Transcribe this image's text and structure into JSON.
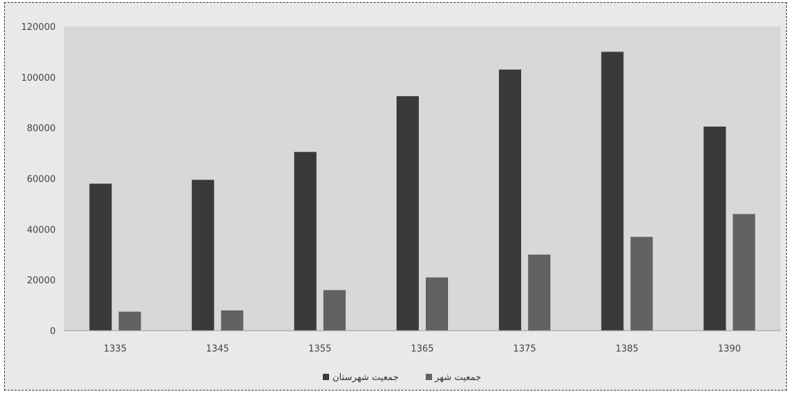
{
  "chart_data": {
    "type": "bar",
    "categories": [
      "1335",
      "1345",
      "1355",
      "1365",
      "1375",
      "1385",
      "1390"
    ],
    "series": [
      {
        "name": "جمعیت شهرستان",
        "values": [
          58000,
          59500,
          70500,
          92500,
          103000,
          110000,
          80500
        ],
        "color": "#3a3a3a"
      },
      {
        "name": "جمعیت شهر",
        "values": [
          7500,
          8000,
          16000,
          21000,
          30000,
          37000,
          46000
        ],
        "color": "#626262"
      }
    ],
    "yticks": [
      "0",
      "20000",
      "40000",
      "60000",
      "80000",
      "100000",
      "120000"
    ],
    "ylim": [
      0,
      120000
    ],
    "grid": false,
    "legend_position": "bottom-center",
    "plot_background": "#d9d9d9"
  }
}
